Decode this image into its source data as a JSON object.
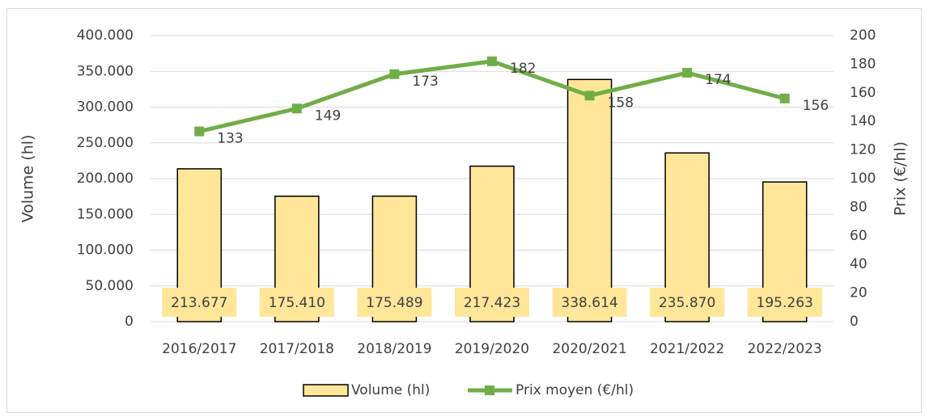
{
  "chart_data": {
    "type": "bar",
    "categories": [
      "2016/2017",
      "2017/2018",
      "2018/2019",
      "2019/2020",
      "2020/2021",
      "2021/2022",
      "2022/2023"
    ],
    "series": [
      {
        "name": "Volume (hl)",
        "type": "bar",
        "color": "#ffe699",
        "values": [
          213677,
          175410,
          175489,
          217423,
          338614,
          235870,
          195263
        ],
        "value_labels": [
          "213.677",
          "175.410",
          "175.489",
          "217.423",
          "338.614",
          "235.870",
          "195.263"
        ]
      },
      {
        "name": "Prix moyen (€/hl)",
        "type": "line",
        "axis": "y2",
        "color": "#70ad47",
        "values": [
          133,
          149,
          173,
          182,
          158,
          174,
          156
        ]
      }
    ],
    "y_label": "Volume (hl)",
    "y2_label": "Prix (€/hl)",
    "ylim": [
      0,
      400000
    ],
    "yticks": [
      0,
      {
        "value": 50000,
        "label": "50.000"
      },
      {
        "value": 100000,
        "label": "100.000"
      },
      {
        "value": 150000,
        "label": "150.000"
      },
      {
        "value": 200000,
        "label": "200.000"
      },
      {
        "value": 250000,
        "label": "250.000"
      },
      {
        "value": 300000,
        "label": "300.000"
      },
      {
        "value": 350000,
        "label": "350.000"
      },
      {
        "value": 400000,
        "label": "400.000"
      }
    ],
    "y2lim": [
      0,
      200
    ],
    "y2ticks": [
      0,
      20,
      40,
      60,
      80,
      100,
      120,
      140,
      160,
      180,
      200
    ],
    "grid": true,
    "legend": "bottom"
  }
}
